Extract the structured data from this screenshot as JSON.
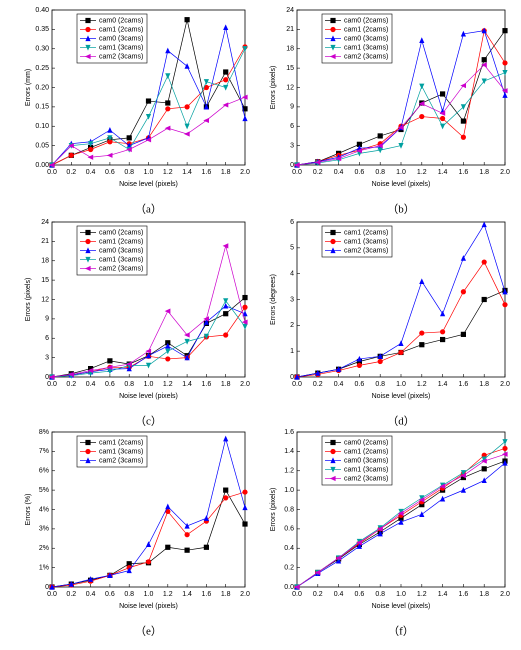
{
  "chart_data": [
    {
      "type": "line",
      "caption": "（a）",
      "x_label": "Noise level (pixels)",
      "y_label": "Errors (mm)",
      "x": [
        0,
        0.2,
        0.4,
        0.6,
        0.8,
        1,
        1.2,
        1.4,
        1.6,
        1.8,
        2
      ],
      "xlim": [
        0,
        2
      ],
      "xticks": [
        {
          "value": 0,
          "label": "0.0"
        },
        {
          "value": 0.2,
          "label": "0.2"
        },
        {
          "value": 0.4,
          "label": "0.4"
        },
        {
          "value": 0.6,
          "label": "0.6"
        },
        {
          "value": 0.8,
          "label": "0.8"
        },
        {
          "value": 1,
          "label": "1.0"
        },
        {
          "value": 1.2,
          "label": "1.2"
        },
        {
          "value": 1.4,
          "label": "1.4"
        },
        {
          "value": 1.6,
          "label": "1.6"
        },
        {
          "value": 1.8,
          "label": "1.8"
        },
        {
          "value": 2,
          "label": "2.0"
        }
      ],
      "ylim": [
        0,
        0.4
      ],
      "yticks": [
        {
          "value": 0,
          "label": "0.00"
        },
        {
          "value": 0.05,
          "label": "0.05"
        },
        {
          "value": 0.1,
          "label": "0.10"
        },
        {
          "value": 0.15,
          "label": "0.15"
        },
        {
          "value": 0.2,
          "label": "0.20"
        },
        {
          "value": 0.25,
          "label": "0.25"
        },
        {
          "value": 0.3,
          "label": "0.30"
        },
        {
          "value": 0.35,
          "label": "0.35"
        },
        {
          "value": 0.4,
          "label": "0.40"
        }
      ],
      "legend": "top-left",
      "series": [
        {
          "name": "cam0 (2cams)",
          "color": "#000000",
          "marker": "square",
          "values": [
            0,
            0.025,
            0.045,
            0.065,
            0.07,
            0.165,
            0.16,
            0.375,
            0.15,
            0.24,
            0.145
          ]
        },
        {
          "name": "cam1 (2cams)",
          "color": "#ff0000",
          "marker": "circle",
          "values": [
            0,
            0.025,
            0.04,
            0.06,
            0.055,
            0.07,
            0.145,
            0.15,
            0.2,
            0.22,
            0.305
          ]
        },
        {
          "name": "cam0 (3cams)",
          "color": "#0000ff",
          "marker": "triangle-up",
          "values": [
            0,
            0.055,
            0.06,
            0.09,
            0.05,
            0.07,
            0.295,
            0.255,
            0.15,
            0.355,
            0.12
          ]
        },
        {
          "name": "cam1 (3cams)",
          "color": "#00a0a0",
          "marker": "triangle-down",
          "values": [
            0,
            0.05,
            0.055,
            0.07,
            0.04,
            0.125,
            0.23,
            0.1,
            0.215,
            0.2,
            0.3
          ]
        },
        {
          "name": "cam2 (3cams)",
          "color": "#cc00cc",
          "marker": "triangle-left",
          "values": [
            0,
            0.05,
            0.02,
            0.025,
            0.04,
            0.065,
            0.095,
            0.08,
            0.115,
            0.155,
            0.175
          ]
        }
      ]
    },
    {
      "type": "line",
      "caption": "（b）",
      "x_label": "Noise level (pixels)",
      "y_label": "Errors (pixels)",
      "x": [
        0,
        0.2,
        0.4,
        0.6,
        0.8,
        1,
        1.2,
        1.4,
        1.6,
        1.8,
        2
      ],
      "xlim": [
        0,
        2
      ],
      "xticks": [
        {
          "value": 0,
          "label": "0.0"
        },
        {
          "value": 0.2,
          "label": "0.2"
        },
        {
          "value": 0.4,
          "label": "0.4"
        },
        {
          "value": 0.6,
          "label": "0.6"
        },
        {
          "value": 0.8,
          "label": "0.8"
        },
        {
          "value": 1,
          "label": "1.0"
        },
        {
          "value": 1.2,
          "label": "1.2"
        },
        {
          "value": 1.4,
          "label": "1.4"
        },
        {
          "value": 1.6,
          "label": "1.6"
        },
        {
          "value": 1.8,
          "label": "1.8"
        },
        {
          "value": 2,
          "label": "2.0"
        }
      ],
      "ylim": [
        0,
        24
      ],
      "yticks": [
        0,
        3,
        6,
        9,
        12,
        15,
        18,
        21,
        24
      ],
      "legend": "top-left",
      "series": [
        {
          "name": "cam0 (2cams)",
          "color": "#000000",
          "marker": "square",
          "values": [
            0,
            0.5,
            1.8,
            3.2,
            4.5,
            5.5,
            9.6,
            11,
            6.8,
            16.3,
            20.8
          ]
        },
        {
          "name": "cam1 (2cams)",
          "color": "#ff0000",
          "marker": "circle",
          "values": [
            0,
            0.5,
            1.5,
            2.3,
            3.3,
            6,
            7.5,
            7.2,
            4.3,
            20.8,
            15.8
          ]
        },
        {
          "name": "cam0 (3cams)",
          "color": "#0000ff",
          "marker": "triangle-up",
          "values": [
            0,
            0.5,
            1.2,
            2.6,
            2.8,
            5.8,
            19.3,
            8.3,
            20.3,
            20.8,
            10.8
          ]
        },
        {
          "name": "cam1 (3cams)",
          "color": "#00a0a0",
          "marker": "triangle-down",
          "values": [
            0,
            0.3,
            0.8,
            1.8,
            2.3,
            3,
            12.2,
            6,
            9,
            13,
            14.3
          ]
        },
        {
          "name": "cam2 (3cams)",
          "color": "#cc00cc",
          "marker": "triangle-left",
          "values": [
            0,
            0.4,
            1,
            2.2,
            3,
            5.8,
            9.5,
            8,
            12.3,
            15.5,
            11.5
          ]
        }
      ]
    },
    {
      "type": "line",
      "caption": "（c）",
      "x_label": "Noise level (pixels)",
      "y_label": "Errors (pixels)",
      "x": [
        0,
        0.2,
        0.4,
        0.6,
        0.8,
        1,
        1.2,
        1.4,
        1.6,
        1.8,
        2
      ],
      "xlim": [
        0,
        2
      ],
      "xticks": [
        {
          "value": 0,
          "label": "0.0"
        },
        {
          "value": 0.2,
          "label": "0.2"
        },
        {
          "value": 0.4,
          "label": "0.4"
        },
        {
          "value": 0.6,
          "label": "0.6"
        },
        {
          "value": 0.8,
          "label": "0.8"
        },
        {
          "value": 1,
          "label": "1.0"
        },
        {
          "value": 1.2,
          "label": "1.2"
        },
        {
          "value": 1.4,
          "label": "1.4"
        },
        {
          "value": 1.6,
          "label": "1.6"
        },
        {
          "value": 1.8,
          "label": "1.8"
        },
        {
          "value": 2,
          "label": "2.0"
        }
      ],
      "ylim": [
        0,
        24
      ],
      "yticks": [
        0,
        3,
        6,
        9,
        12,
        15,
        18,
        21,
        24
      ],
      "legend": "top-left",
      "series": [
        {
          "name": "cam0 (2cams)",
          "color": "#000000",
          "marker": "square",
          "values": [
            0,
            0.5,
            1.3,
            2.5,
            2,
            3.3,
            5.3,
            3.3,
            8.3,
            9.8,
            12.3
          ]
        },
        {
          "name": "cam1 (2cams)",
          "color": "#ff0000",
          "marker": "circle",
          "values": [
            0,
            0.3,
            0.8,
            1.5,
            1.5,
            3.2,
            2.8,
            3,
            6.2,
            6.5,
            10.8
          ]
        },
        {
          "name": "cam0 (3cams)",
          "color": "#0000ff",
          "marker": "triangle-up",
          "values": [
            0,
            0.3,
            0.8,
            1.2,
            1.3,
            3.3,
            4.8,
            3,
            8.5,
            11,
            9.8
          ]
        },
        {
          "name": "cam1 (3cams)",
          "color": "#00a0a0",
          "marker": "triangle-down",
          "values": [
            0,
            0.2,
            0.6,
            0.9,
            1.8,
            1.8,
            4,
            5.5,
            6.3,
            11.8,
            7.8
          ]
        },
        {
          "name": "cam2 (3cams)",
          "color": "#cc00cc",
          "marker": "triangle-left",
          "values": [
            0,
            0.4,
            1,
            1.5,
            2,
            4,
            10.2,
            6.5,
            9,
            20.3,
            8.5
          ]
        }
      ]
    },
    {
      "type": "line",
      "caption": "（d）",
      "x_label": "Noise level (pixels)",
      "y_label": "Errors (degrees)",
      "x": [
        0,
        0.2,
        0.4,
        0.6,
        0.8,
        1,
        1.2,
        1.4,
        1.6,
        1.8,
        2
      ],
      "xlim": [
        0,
        2
      ],
      "xticks": [
        {
          "value": 0,
          "label": "0.0"
        },
        {
          "value": 0.2,
          "label": "0.2"
        },
        {
          "value": 0.4,
          "label": "0.4"
        },
        {
          "value": 0.6,
          "label": "0.6"
        },
        {
          "value": 0.8,
          "label": "0.8"
        },
        {
          "value": 1,
          "label": "1.0"
        },
        {
          "value": 1.2,
          "label": "1.2"
        },
        {
          "value": 1.4,
          "label": "1.4"
        },
        {
          "value": 1.6,
          "label": "1.6"
        },
        {
          "value": 1.8,
          "label": "1.8"
        },
        {
          "value": 2,
          "label": "2.0"
        }
      ],
      "ylim": [
        0,
        6
      ],
      "yticks": [
        0,
        1,
        2,
        3,
        4,
        5,
        6
      ],
      "legend": "top-left",
      "series": [
        {
          "name": "cam1 (2cams)",
          "color": "#000000",
          "marker": "square",
          "values": [
            0,
            0.15,
            0.3,
            0.6,
            0.8,
            0.95,
            1.25,
            1.45,
            1.65,
            3,
            3.35
          ]
        },
        {
          "name": "cam1 (3cams)",
          "color": "#ff0000",
          "marker": "circle",
          "values": [
            0,
            0.1,
            0.25,
            0.45,
            0.6,
            0.95,
            1.7,
            1.75,
            3.3,
            4.45,
            2.8
          ]
        },
        {
          "name": "cam2 (3cams)",
          "color": "#0000ff",
          "marker": "triangle-up",
          "values": [
            0,
            0.15,
            0.3,
            0.7,
            0.8,
            1.3,
            3.7,
            2.45,
            4.6,
            5.9,
            3.3
          ]
        }
      ]
    },
    {
      "type": "line",
      "caption": "（e）",
      "x_label": "Noise level (pixels)",
      "y_label": "Errors (%)",
      "x": [
        0,
        0.2,
        0.4,
        0.6,
        0.8,
        1,
        1.2,
        1.4,
        1.6,
        1.8,
        2
      ],
      "xlim": [
        0,
        2
      ],
      "xticks": [
        {
          "value": 0,
          "label": "0.0"
        },
        {
          "value": 0.2,
          "label": "0.2"
        },
        {
          "value": 0.4,
          "label": "0.4"
        },
        {
          "value": 0.6,
          "label": "0.6"
        },
        {
          "value": 0.8,
          "label": "0.8"
        },
        {
          "value": 1,
          "label": "1.0"
        },
        {
          "value": 1.2,
          "label": "1.2"
        },
        {
          "value": 1.4,
          "label": "1.4"
        },
        {
          "value": 1.6,
          "label": "1.6"
        },
        {
          "value": 1.8,
          "label": "1.8"
        },
        {
          "value": 2,
          "label": "2.0"
        }
      ],
      "ylim": [
        0,
        8
      ],
      "yticks": [
        {
          "value": 0,
          "label": "0"
        },
        {
          "value": 1,
          "label": "1%"
        },
        {
          "value": 2,
          "label": "2%"
        },
        {
          "value": 3,
          "label": "3%"
        },
        {
          "value": 4,
          "label": "4%"
        },
        {
          "value": 5,
          "label": "5%"
        },
        {
          "value": 6,
          "label": "6%"
        },
        {
          "value": 7,
          "label": "7%"
        },
        {
          "value": 8,
          "label": "8%"
        }
      ],
      "legend": "top-left",
      "series": [
        {
          "name": "cam1 (2cams)",
          "color": "#000000",
          "marker": "square",
          "values": [
            0,
            0.15,
            0.35,
            0.6,
            1.2,
            1.25,
            2.05,
            1.9,
            2.05,
            5,
            3.25
          ]
        },
        {
          "name": "cam1 (3cams)",
          "color": "#ff0000",
          "marker": "circle",
          "values": [
            0,
            0.1,
            0.3,
            0.6,
            1,
            1.3,
            3.9,
            2.7,
            3.4,
            4.6,
            4.9
          ]
        },
        {
          "name": "cam2 (3cams)",
          "color": "#0000ff",
          "marker": "triangle-up",
          "values": [
            0,
            0.15,
            0.4,
            0.6,
            0.85,
            2.2,
            4.15,
            3.15,
            3.55,
            7.65,
            4.1
          ]
        }
      ]
    },
    {
      "type": "line",
      "caption": "（f）",
      "x_label": "Noise level (pixels)",
      "y_label": "Errors (pixels)",
      "x": [
        0,
        0.2,
        0.4,
        0.6,
        0.8,
        1,
        1.2,
        1.4,
        1.6,
        1.8,
        2
      ],
      "xlim": [
        0,
        2
      ],
      "xticks": [
        {
          "value": 0,
          "label": "0.0"
        },
        {
          "value": 0.2,
          "label": "0.2"
        },
        {
          "value": 0.4,
          "label": "0.4"
        },
        {
          "value": 0.6,
          "label": "0.6"
        },
        {
          "value": 0.8,
          "label": "0.8"
        },
        {
          "value": 1,
          "label": "1.0"
        },
        {
          "value": 1.2,
          "label": "1.2"
        },
        {
          "value": 1.4,
          "label": "1.4"
        },
        {
          "value": 1.6,
          "label": "1.6"
        },
        {
          "value": 1.8,
          "label": "1.8"
        },
        {
          "value": 2,
          "label": "2.0"
        }
      ],
      "ylim": [
        0,
        1.6
      ],
      "yticks": [
        {
          "value": 0,
          "label": "0.0"
        },
        {
          "value": 0.2,
          "label": "0.2"
        },
        {
          "value": 0.4,
          "label": "0.4"
        },
        {
          "value": 0.6,
          "label": "0.6"
        },
        {
          "value": 0.8,
          "label": "0.8"
        },
        {
          "value": 1,
          "label": "1.0"
        },
        {
          "value": 1.2,
          "label": "1.2"
        },
        {
          "value": 1.4,
          "label": "1.4"
        },
        {
          "value": 1.6,
          "label": "1.6"
        }
      ],
      "legend": "top-left",
      "series": [
        {
          "name": "cam0 (2cams)",
          "color": "#000000",
          "marker": "square",
          "values": [
            0,
            0.15,
            0.29,
            0.44,
            0.57,
            0.71,
            0.85,
            1,
            1.13,
            1.22,
            1.3
          ]
        },
        {
          "name": "cam1 (2cams)",
          "color": "#ff0000",
          "marker": "circle",
          "values": [
            0,
            0.15,
            0.3,
            0.45,
            0.6,
            0.74,
            0.88,
            1.02,
            1.17,
            1.36,
            1.43
          ]
        },
        {
          "name": "cam0 (3cams)",
          "color": "#0000ff",
          "marker": "triangle-up",
          "values": [
            0,
            0.14,
            0.27,
            0.42,
            0.55,
            0.67,
            0.75,
            0.91,
            1,
            1.1,
            1.28
          ]
        },
        {
          "name": "cam1 (3cams)",
          "color": "#00a0a0",
          "marker": "triangle-down",
          "values": [
            0,
            0.15,
            0.3,
            0.47,
            0.61,
            0.78,
            0.92,
            1.05,
            1.18,
            1.32,
            1.5
          ]
        },
        {
          "name": "cam2 (3cams)",
          "color": "#cc00cc",
          "marker": "triangle-left",
          "values": [
            0,
            0.15,
            0.3,
            0.46,
            0.6,
            0.76,
            0.9,
            1.04,
            1.15,
            1.3,
            1.37
          ]
        }
      ]
    }
  ]
}
